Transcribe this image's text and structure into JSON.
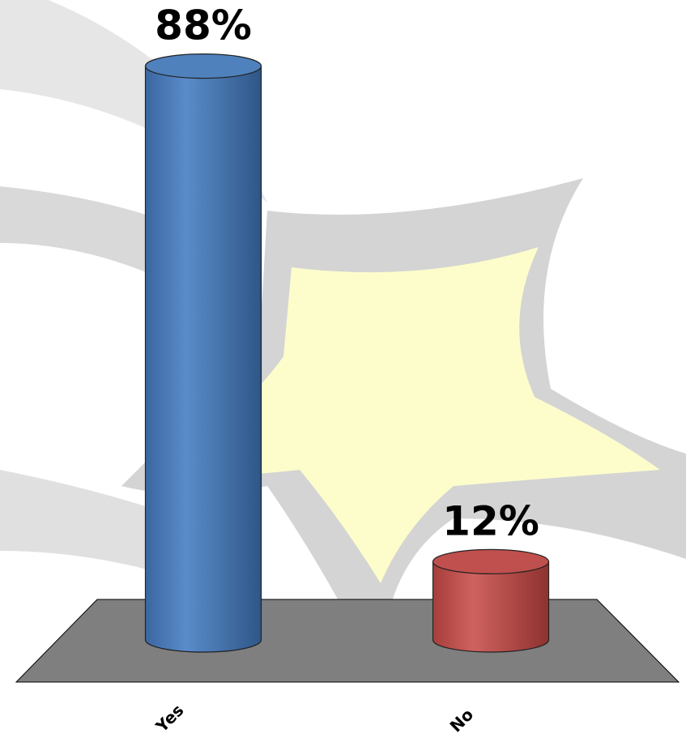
{
  "chart_data": {
    "type": "bar3d",
    "categories": [
      "Yes",
      "No"
    ],
    "values": [
      88,
      12
    ],
    "value_labels": [
      "88%",
      "12%"
    ],
    "colors": [
      "#4f81bd",
      "#c0504d"
    ]
  }
}
